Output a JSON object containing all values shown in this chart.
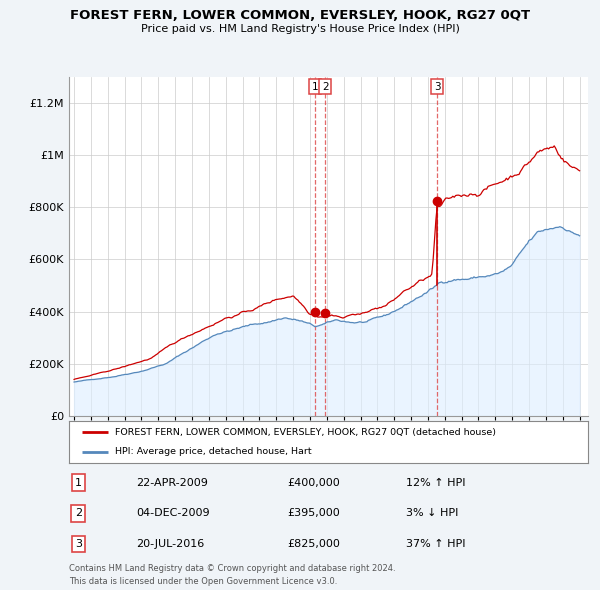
{
  "title": "FOREST FERN, LOWER COMMON, EVERSLEY, HOOK, RG27 0QT",
  "subtitle": "Price paid vs. HM Land Registry's House Price Index (HPI)",
  "legend_label_red": "FOREST FERN, LOWER COMMON, EVERSLEY, HOOK, RG27 0QT (detached house)",
  "legend_label_blue": "HPI: Average price, detached house, Hart",
  "transactions": [
    {
      "num": 1,
      "date": "22-APR-2009",
      "price": 400000,
      "pct": "12%",
      "dir": "↑"
    },
    {
      "num": 2,
      "date": "04-DEC-2009",
      "price": 395000,
      "pct": "3%",
      "dir": "↓"
    },
    {
      "num": 3,
      "date": "20-JUL-2016",
      "price": 825000,
      "pct": "37%",
      "dir": "↑"
    }
  ],
  "footnote1": "Contains HM Land Registry data © Crown copyright and database right 2024.",
  "footnote2": "This data is licensed under the Open Government Licence v3.0.",
  "red_color": "#cc0000",
  "blue_color": "#5588bb",
  "blue_fill_color": "#ddeeff",
  "dashed_color": "#dd4444",
  "background_color": "#f0f4f8",
  "plot_bg_color": "#ffffff",
  "ylim": [
    0,
    1300000
  ],
  "yticks": [
    0,
    200000,
    400000,
    600000,
    800000,
    1000000,
    1200000
  ],
  "xlim_start": 1994.7,
  "xlim_end": 2025.5
}
